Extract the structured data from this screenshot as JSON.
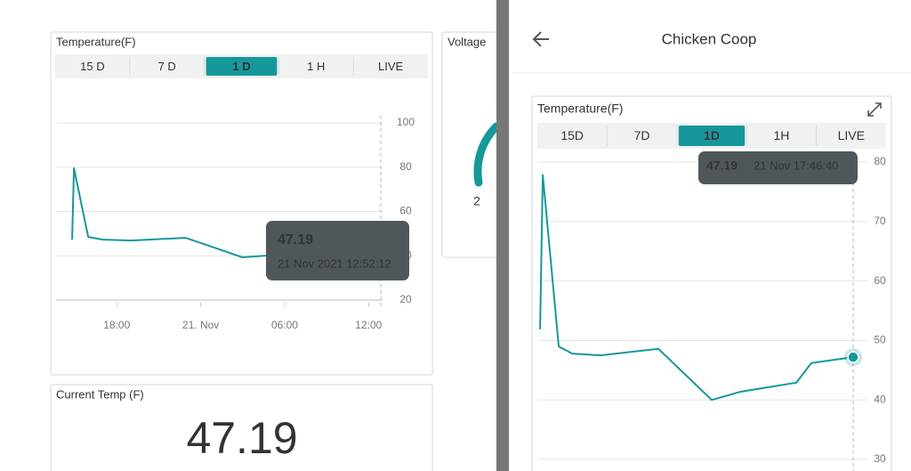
{
  "left": {
    "temperature_widget": {
      "title": "Temperature(F)",
      "tabs": [
        "15 D",
        "7 D",
        "1 D",
        "1 H",
        "LIVE"
      ],
      "active_tab": 2,
      "chart": {
        "type": "line",
        "color": "#16989a",
        "x": [
          -9.19,
          -9.06,
          -8.04,
          -7.02,
          -4.98,
          -1.09,
          2.99,
          4.79,
          12.87
        ],
        "values": [
          47.3,
          79.5,
          48.5,
          47.3,
          46.9,
          48.1,
          39.3,
          40.1,
          47.19
        ],
        "xlim": [
          -10.34,
          12.87
        ],
        "ylim": [
          20,
          100
        ],
        "yticks": [
          20,
          40,
          60,
          80,
          100
        ],
        "xticks": [
          {
            "value": -6,
            "label": "18:00"
          },
          {
            "value": 0,
            "label": "21. Nov"
          },
          {
            "value": 6,
            "label": "06:00"
          },
          {
            "value": 12,
            "label": "12:00"
          }
        ],
        "grid": true,
        "tooltip": {
          "value": 47.19,
          "time": "21 Nov 2021 12:52:12"
        }
      }
    },
    "voltage_widget": {
      "title": "Voltage",
      "gauge_label": "2"
    },
    "current_temp_widget": {
      "title": "Current Temp (F)",
      "value": 47.19
    }
  },
  "right": {
    "header": {
      "title": "Chicken Coop"
    },
    "temperature_widget": {
      "title": "Temperature(F)",
      "tabs": [
        "15D",
        "7D",
        "1D",
        "1H",
        "LIVE"
      ],
      "active_tab": 2,
      "chart": {
        "type": "line",
        "color": "#16989a",
        "x": [
          -4.22,
          -4.03,
          -2.91,
          -1.97,
          0.03,
          4.09,
          7.84,
          9.9,
          13.78,
          14.84,
          17.78
        ],
        "values": [
          51.9,
          77.8,
          49.0,
          47.8,
          47.5,
          48.6,
          40.0,
          41.4,
          42.9,
          46.2,
          47.19
        ],
        "xlim": [
          -4.35,
          17.78
        ],
        "ylim": [
          30,
          80
        ],
        "yticks": [
          30,
          40,
          50,
          60,
          70,
          80
        ],
        "grid": true,
        "tooltip": {
          "value": 47.19,
          "time": "21 Nov 17:46:40"
        }
      }
    }
  }
}
